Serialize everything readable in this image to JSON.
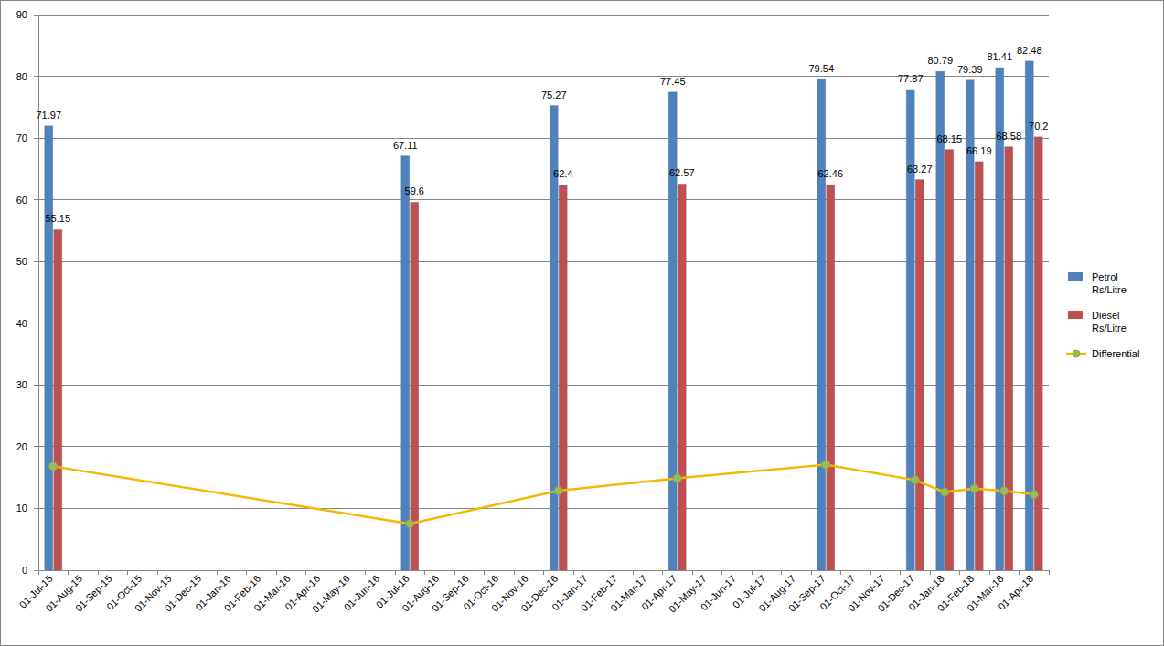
{
  "chart_data": {
    "type": "bar",
    "categories": [
      "01-Jul-15",
      "01-Aug-15",
      "01-Sep-15",
      "01-Oct-15",
      "01-Nov-15",
      "01-Dec-15",
      "01-Jan-16",
      "01-Feb-16",
      "01-Mar-16",
      "01-Apr-16",
      "01-May-16",
      "01-Jun-16",
      "01-Jul-16",
      "01-Aug-16",
      "01-Sep-16",
      "01-Oct-16",
      "01-Nov-16",
      "01-Dec-16",
      "01-Jan-17",
      "01-Feb-17",
      "01-Mar-17",
      "01-Apr-17",
      "01-May-17",
      "01-Jun-17",
      "01-Jul-17",
      "01-Aug-17",
      "01-Sep-17",
      "01-Oct-17",
      "01-Nov-17",
      "01-Dec-17",
      "01-Jan-18",
      "01-Feb-18",
      "01-Mar-18",
      "01-Apr-18"
    ],
    "series": [
      {
        "name": "Petrol Rs/Litre",
        "type": "bar",
        "color": "#4f81bd",
        "data_labels": true,
        "x": [
          "01-Jul-15",
          "01-Jul-16",
          "01-Dec-16",
          "01-Apr-17",
          "01-Sep-17",
          "01-Dec-17",
          "01-Jan-18",
          "01-Feb-18",
          "01-Mar-18",
          "01-Apr-18"
        ],
        "values": [
          71.97,
          67.11,
          75.27,
          77.45,
          79.54,
          77.87,
          80.79,
          79.39,
          81.41,
          82.48
        ]
      },
      {
        "name": "Diesel Rs/Litre",
        "type": "bar",
        "color": "#c0504d",
        "data_labels": true,
        "x": [
          "01-Jul-15",
          "01-Jul-16",
          "01-Dec-16",
          "01-Apr-17",
          "01-Sep-17",
          "01-Dec-17",
          "01-Jan-18",
          "01-Feb-18",
          "01-Mar-18",
          "01-Apr-18"
        ],
        "values": [
          55.15,
          59.6,
          62.4,
          62.57,
          62.46,
          63.27,
          68.15,
          66.19,
          68.58,
          70.2
        ]
      },
      {
        "name": "Differential",
        "type": "line",
        "color": "#f5b800",
        "marker": "circle",
        "x": [
          "01-Jul-15",
          "01-Jul-16",
          "01-Dec-16",
          "01-Apr-17",
          "01-Sep-17",
          "01-Dec-17",
          "01-Jan-18",
          "01-Feb-18",
          "01-Mar-18",
          "01-Apr-18"
        ],
        "values": [
          16.82,
          7.51,
          12.87,
          14.88,
          17.08,
          14.6,
          12.64,
          13.2,
          12.83,
          12.28
        ]
      }
    ],
    "ylim": [
      0,
      90
    ],
    "yticks": [
      0,
      10,
      20,
      30,
      40,
      50,
      60,
      70,
      80,
      90
    ],
    "grid": true,
    "legend": "right"
  }
}
